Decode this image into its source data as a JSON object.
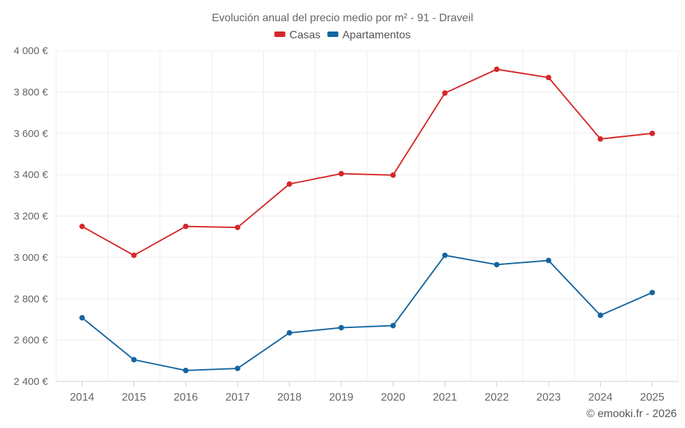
{
  "chart_data": {
    "type": "line",
    "title": "Evolución anual del precio medio por m² - 91 - Draveil",
    "categories": [
      "2014",
      "2015",
      "2016",
      "2017",
      "2018",
      "2019",
      "2020",
      "2021",
      "2022",
      "2023",
      "2024",
      "2025"
    ],
    "series": [
      {
        "name": "Casas",
        "color": "#d62728",
        "values": [
          3150,
          3010,
          3150,
          3145,
          3355,
          3405,
          3398,
          3795,
          3910,
          3870,
          3573,
          3600
        ]
      },
      {
        "name": "Apartamentos",
        "color": "#1565a0",
        "values": [
          2708,
          2505,
          2453,
          2463,
          2635,
          2660,
          2670,
          3010,
          2965,
          2985,
          2720,
          2830
        ]
      }
    ],
    "ylim": [
      2400,
      4000
    ],
    "yticks": [
      2400,
      2600,
      2800,
      3000,
      3200,
      3400,
      3600,
      3800,
      4000
    ],
    "ytick_labels": [
      "2 400 €",
      "2 600 €",
      "2 800 €",
      "3 000 €",
      "3 200 €",
      "3 400 €",
      "3 600 €",
      "3 800 €",
      "4 000 €"
    ],
    "xlabel": "",
    "ylabel": "",
    "grid": true,
    "legend_position": "top-center"
  },
  "credit": "© emooki.fr - 2026"
}
